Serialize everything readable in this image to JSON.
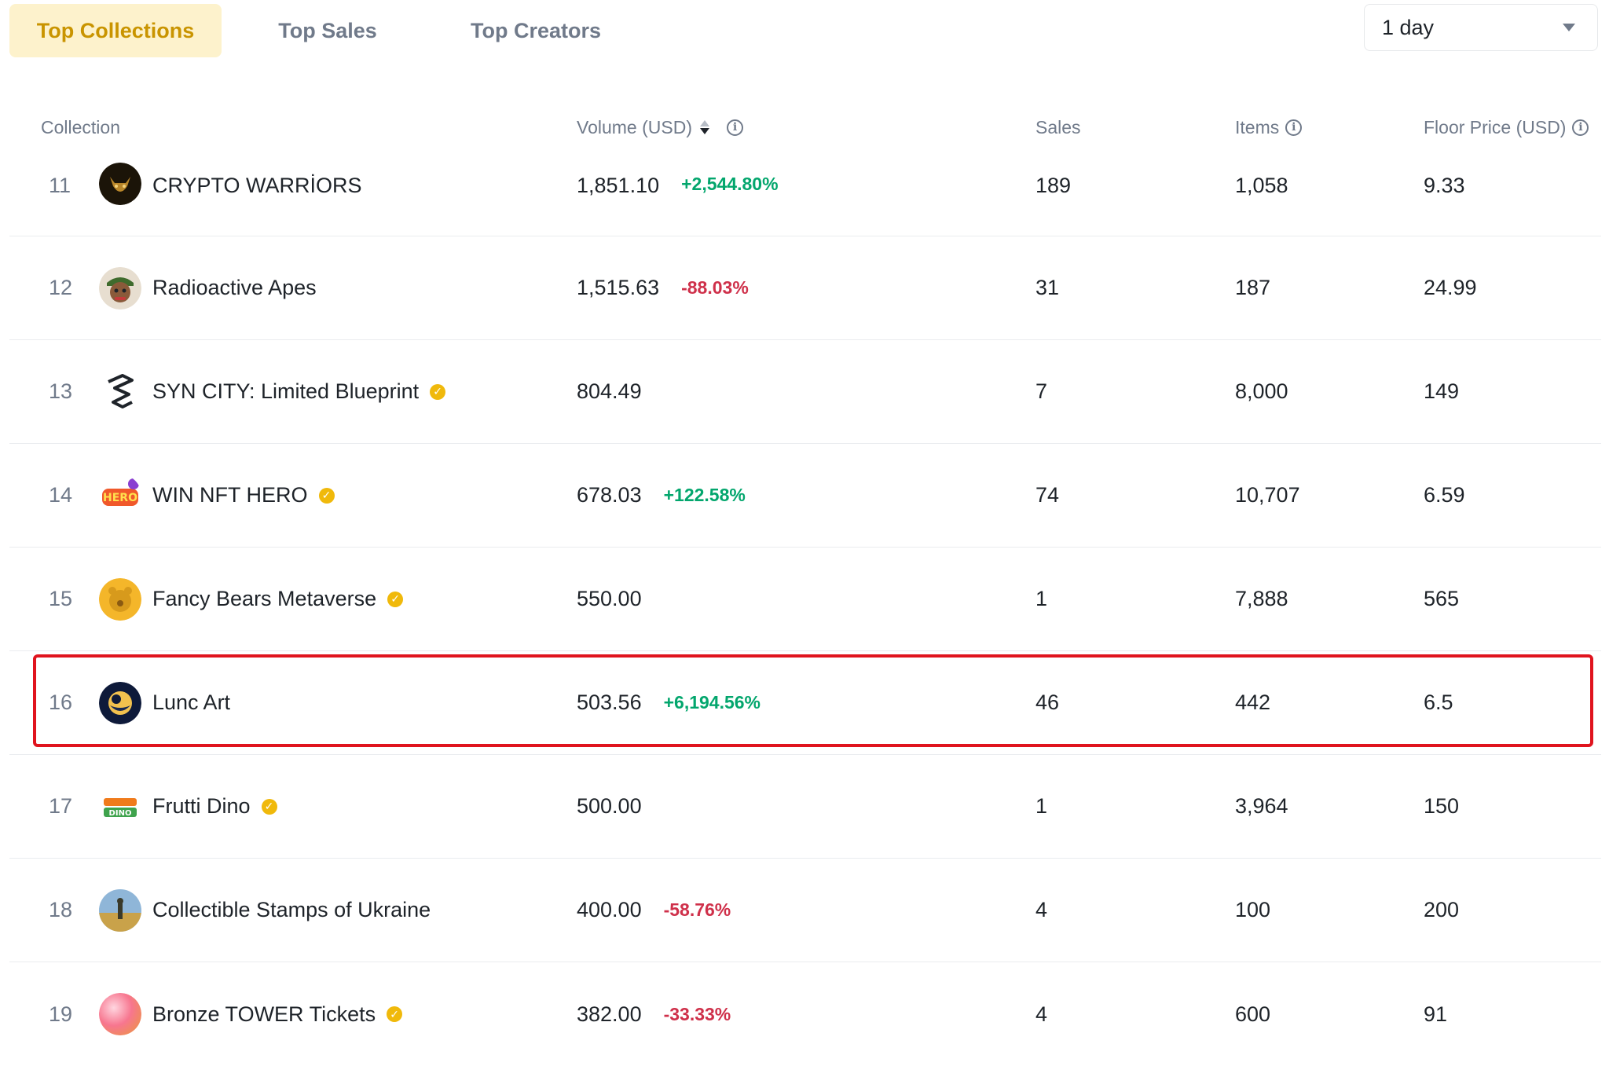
{
  "tabs": [
    {
      "label": "Top Collections",
      "active": true
    },
    {
      "label": "Top Sales",
      "active": false
    },
    {
      "label": "Top Creators",
      "active": false
    }
  ],
  "period": {
    "selected": "1 day"
  },
  "columns": {
    "collection": "Collection",
    "volume": "Volume (USD)",
    "sales": "Sales",
    "items": "Items",
    "floor": "Floor Price (USD)"
  },
  "rows": [
    {
      "rank": "11",
      "name": "CRYPTO WARRİORS",
      "verified": false,
      "volume": "1,851.10",
      "change": "+2,544.80%",
      "trend": "up",
      "sales": "189",
      "items": "1,058",
      "floor": "9.33",
      "avatar": "crypto-warriors-avatar"
    },
    {
      "rank": "12",
      "name": "Radioactive Apes",
      "verified": false,
      "volume": "1,515.63",
      "change": "-88.03%",
      "trend": "down",
      "sales": "31",
      "items": "187",
      "floor": "24.99",
      "avatar": "radioactive-apes-avatar"
    },
    {
      "rank": "13",
      "name": "SYN CITY: Limited Blueprint",
      "verified": true,
      "volume": "804.49",
      "change": "",
      "trend": "",
      "sales": "7",
      "items": "8,000",
      "floor": "149",
      "avatar": "syn-city-avatar"
    },
    {
      "rank": "14",
      "name": "WIN NFT HERO",
      "verified": true,
      "volume": "678.03",
      "change": "+122.58%",
      "trend": "up",
      "sales": "74",
      "items": "10,707",
      "floor": "6.59",
      "avatar": "win-nft-hero-avatar"
    },
    {
      "rank": "15",
      "name": "Fancy Bears Metaverse",
      "verified": true,
      "volume": "550.00",
      "change": "",
      "trend": "",
      "sales": "1",
      "items": "7,888",
      "floor": "565",
      "avatar": "fancy-bears-avatar"
    },
    {
      "rank": "16",
      "name": "Lunc Art",
      "verified": false,
      "volume": "503.56",
      "change": "+6,194.56%",
      "trend": "up",
      "sales": "46",
      "items": "442",
      "floor": "6.5",
      "avatar": "lunc-art-avatar",
      "highlighted": true
    },
    {
      "rank": "17",
      "name": "Frutti Dino",
      "verified": true,
      "volume": "500.00",
      "change": "",
      "trend": "",
      "sales": "1",
      "items": "3,964",
      "floor": "150",
      "avatar": "frutti-dino-avatar"
    },
    {
      "rank": "18",
      "name": "Collectible Stamps of Ukraine",
      "verified": false,
      "volume": "400.00",
      "change": "-58.76%",
      "trend": "down",
      "sales": "4",
      "items": "100",
      "floor": "200",
      "avatar": "stamps-ukraine-avatar"
    },
    {
      "rank": "19",
      "name": "Bronze TOWER Tickets",
      "verified": true,
      "volume": "382.00",
      "change": "-33.33%",
      "trend": "down",
      "sales": "4",
      "items": "600",
      "floor": "91",
      "avatar": "bronze-tower-avatar"
    }
  ],
  "icons": {
    "verified": "verified-badge-icon",
    "info": "info-icon",
    "sort": "sort-icon",
    "dropdown": "chevron-down-icon"
  },
  "colors": {
    "accent": "#c99400",
    "active_tab_bg": "#fdf2cc",
    "positive": "#03a66d",
    "negative": "#cf304a",
    "highlight_border": "#e0141e"
  }
}
